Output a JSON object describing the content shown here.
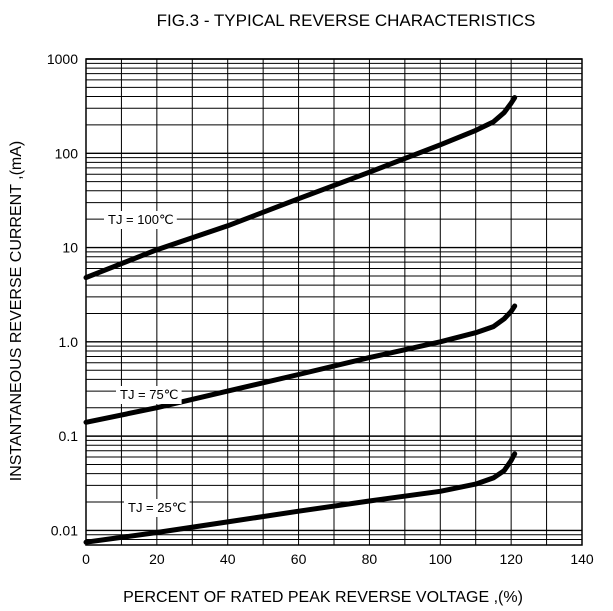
{
  "chart_data": {
    "type": "line",
    "title": "FIG.3 - TYPICAL REVERSE CHARACTERISTICS",
    "xlabel": "PERCENT OF RATED PEAK REVERSE VOLTAGE ,(%)",
    "ylabel": "INSTANTANEOUS REVERSE CURRENT ,(mA)",
    "x_scale": "linear",
    "y_scale": "log",
    "xlim": [
      0,
      140
    ],
    "ylim": [
      0.007,
      1000
    ],
    "x_ticks": [
      0,
      20,
      40,
      60,
      80,
      100,
      120,
      140
    ],
    "x_tick_labels": [
      "0",
      "20",
      "40",
      "60",
      "80",
      "100",
      "120",
      "140"
    ],
    "y_ticks": [
      0.01,
      0.1,
      1,
      10,
      100,
      1000
    ],
    "y_tick_labels": [
      "0.01",
      "0.1",
      "1.0",
      "10",
      "100",
      "1000"
    ],
    "grid": true,
    "series": [
      {
        "name": "TJ = 100℃",
        "x": [
          0,
          20,
          40,
          60,
          80,
          100,
          110,
          115,
          118,
          120,
          121
        ],
        "y": [
          4.8,
          9.5,
          17,
          33,
          63,
          123,
          175,
          215,
          270,
          340,
          390
        ]
      },
      {
        "name": "TJ = 75℃",
        "x": [
          0,
          20,
          40,
          60,
          80,
          100,
          110,
          115,
          118,
          120,
          121
        ],
        "y": [
          0.14,
          0.2,
          0.3,
          0.45,
          0.68,
          1.0,
          1.25,
          1.45,
          1.75,
          2.1,
          2.4
        ]
      },
      {
        "name": "TJ = 25℃",
        "x": [
          0,
          20,
          40,
          60,
          80,
          100,
          110,
          115,
          118,
          120,
          121
        ],
        "y": [
          0.0075,
          0.0095,
          0.0123,
          0.016,
          0.0205,
          0.026,
          0.031,
          0.036,
          0.043,
          0.055,
          0.065
        ]
      }
    ],
    "series_labels": [
      "TJ = 100℃",
      "TJ = 75℃",
      "TJ = 25℃"
    ],
    "colors": {
      "line": "#000000",
      "grid": "#000000",
      "background": "#ffffff"
    }
  }
}
